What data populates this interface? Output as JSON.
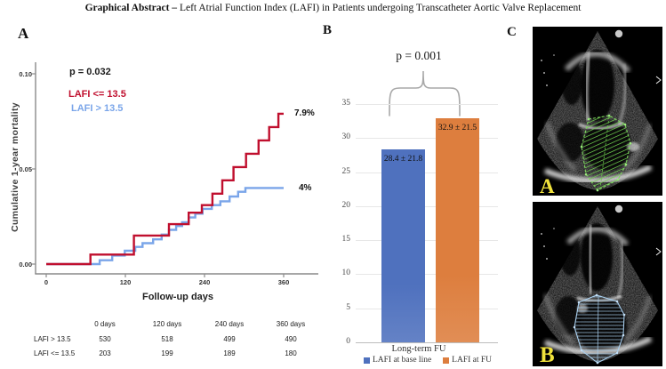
{
  "title": {
    "bold": "Graphical Abstract –",
    "rest": " Left Atrial Function Index (LAFI) in Patients undergoing Transcatheter Aortic Valve Replacement"
  },
  "panels": {
    "a": "A",
    "b": "B",
    "c": "C"
  },
  "chart_data": [
    {
      "type": "line",
      "subtype": "kaplan_meier_step",
      "panel": "A",
      "p_value": "p = 0.032",
      "xlabel": "Follow-up days",
      "ylabel": "Cumulative 1-year mortality",
      "xlim": [
        0,
        360
      ],
      "ylim": [
        0,
        0.1
      ],
      "grid": false,
      "xtick_labels": [
        "0",
        "120",
        "240",
        "360"
      ],
      "ytick_labels": [
        "0.00",
        "0.05",
        "0.10"
      ],
      "series": [
        {
          "name": "LAFI <= 13.5",
          "color": "#c00f2e",
          "end_label": "7.9%",
          "final_value": 0.079,
          "step_points": [
            [
              67,
              0.005
            ],
            [
              133,
              0.015
            ],
            [
              186,
              0.021
            ],
            [
              216,
              0.027
            ],
            [
              236,
              0.031
            ],
            [
              252,
              0.037
            ],
            [
              267,
              0.044
            ],
            [
              284,
              0.051
            ],
            [
              303,
              0.058
            ],
            [
              322,
              0.065
            ],
            [
              338,
              0.072
            ],
            [
              352,
              0.079
            ]
          ]
        },
        {
          "name": "LAFI > 13.5",
          "color": "#7aa5e9",
          "end_label": "4%",
          "final_value": 0.04,
          "step_points": [
            [
              81,
              0.002
            ],
            [
              100,
              0.0045
            ],
            [
              119,
              0.007
            ],
            [
              135,
              0.009
            ],
            [
              146,
              0.011
            ],
            [
              162,
              0.013
            ],
            [
              175,
              0.0155
            ],
            [
              186,
              0.018
            ],
            [
              197,
              0.02
            ],
            [
              206,
              0.022
            ],
            [
              216,
              0.0245
            ],
            [
              226,
              0.0265
            ],
            [
              237,
              0.029
            ],
            [
              251,
              0.031
            ],
            [
              264,
              0.033
            ],
            [
              278,
              0.0355
            ],
            [
              291,
              0.038
            ],
            [
              302,
              0.04
            ]
          ]
        }
      ],
      "risk_table": {
        "col_headers": [
          "0 days",
          "120 days",
          "240 days",
          "360 days"
        ],
        "rows": [
          {
            "label": "LAFI > 13.5",
            "values": [
              "530",
              "518",
              "499",
              "490"
            ]
          },
          {
            "label": "LAFI <= 13.5",
            "values": [
              "203",
              "199",
              "189",
              "180"
            ]
          }
        ]
      }
    },
    {
      "type": "bar",
      "panel": "B",
      "p_value": "p = 0.001",
      "categories": [
        "Long-term FU"
      ],
      "ylim": [
        0,
        35
      ],
      "yticks": [
        0,
        5,
        10,
        15,
        20,
        25,
        30,
        35
      ],
      "grid": true,
      "legend_position": "bottom",
      "series": [
        {
          "name": "LAFI at base line",
          "value": 28.4,
          "sd": 21.8,
          "label": "28.4 ± 21.8",
          "color": "#4f71be"
        },
        {
          "name": "LAFI at FU",
          "value": 32.9,
          "sd": 21.5,
          "label": "32.9 ± 21.5",
          "color": "#dd7e3e"
        }
      ]
    }
  ],
  "echo_panel": {
    "image_a_label": "A",
    "image_b_label": "B",
    "trace_color_a": "#6fd04f",
    "trace_color_b": "#a9cfee"
  }
}
